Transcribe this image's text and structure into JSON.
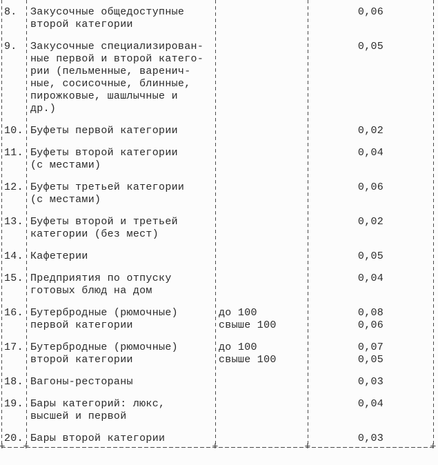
{
  "document": {
    "language": "ru",
    "paper_color": "#fcfcfc",
    "ink_color": "#2a2a2a",
    "border_color": "#4a4a4a",
    "border_style": "dashed-typewriter",
    "junction_glyph": "+"
  },
  "table": {
    "columns": [
      "number",
      "establishment-name",
      "capacity",
      "coefficient"
    ],
    "rows": [
      {
        "num": "8.",
        "name": [
          "Закусочные общедоступные",
          "второй категории"
        ],
        "capacity": [],
        "values": [
          "0,06"
        ]
      },
      {
        "num": "9.",
        "name": [
          "Закусочные специализирован-",
          "ные первой и второй катего-",
          "рии (пельменные, варенич-",
          "ные, сосисочные, блинные,",
          "пирожковые, шашлычные и",
          "др.)"
        ],
        "capacity": [],
        "values": [
          "0,05"
        ]
      },
      {
        "num": "10.",
        "name": [
          "Буфеты первой категории"
        ],
        "capacity": [],
        "values": [
          "0,02"
        ]
      },
      {
        "num": "11.",
        "name": [
          "Буфеты второй категории",
          "(с местами)"
        ],
        "capacity": [],
        "values": [
          "0,04"
        ]
      },
      {
        "num": "12.",
        "name": [
          "Буфеты третьей категории",
          "(с местами)"
        ],
        "capacity": [],
        "values": [
          "0,06"
        ]
      },
      {
        "num": "13.",
        "name": [
          "Буфеты второй и третьей",
          "категории (без мест)"
        ],
        "capacity": [],
        "values": [
          "0,02"
        ]
      },
      {
        "num": "14.",
        "name": [
          "Кафетерии"
        ],
        "capacity": [],
        "values": [
          "0,05"
        ]
      },
      {
        "num": "15.",
        "name": [
          "Предприятия по отпуску",
          "готовых блюд на дом"
        ],
        "capacity": [],
        "values": [
          "0,04"
        ]
      },
      {
        "num": "16.",
        "name": [
          "Бутербродные (рюмочные)",
          "первой категории"
        ],
        "capacity": [
          "до 100",
          "свыше 100"
        ],
        "values": [
          "0,08",
          "0,06"
        ]
      },
      {
        "num": "17.",
        "name": [
          "Бутербродные (рюмочные)",
          "второй категории"
        ],
        "capacity": [
          "до 100",
          "свыше 100"
        ],
        "values": [
          "0,07",
          "0,05"
        ]
      },
      {
        "num": "18.",
        "name": [
          "Вагоны-рестораны"
        ],
        "capacity": [],
        "values": [
          "0,03"
        ]
      },
      {
        "num": "19.",
        "name": [
          "Бары категорий: люкс,",
          "высшей и первой"
        ],
        "capacity": [],
        "values": [
          "0,04"
        ]
      },
      {
        "num": "20.",
        "name": [
          "Бары второй категории"
        ],
        "capacity": [],
        "values": [
          "0,03"
        ]
      }
    ]
  }
}
